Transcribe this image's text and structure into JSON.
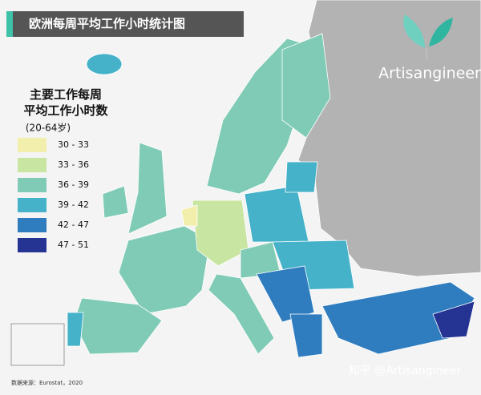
{
  "title": "欧洲每周平均工作小时统计图",
  "legend": {
    "title": "主要工作每周平均工作小时数",
    "subtitle": "(20-64岁)",
    "items": [
      {
        "label": "30 - 33",
        "color": "#f2eeac"
      },
      {
        "label": "33 - 36",
        "color": "#c8e5a2"
      },
      {
        "label": "36 - 39",
        "color": "#80cbb5"
      },
      {
        "label": "39 - 42",
        "color": "#45b2c9"
      },
      {
        "label": "42 - 47",
        "color": "#2f7dbf"
      },
      {
        "label": "47 - 51",
        "color": "#253493"
      }
    ]
  },
  "brand": "Artisangineer",
  "watermark": "知乎 @Artisangineer",
  "source": "数据来源：Eurostat，2020"
}
